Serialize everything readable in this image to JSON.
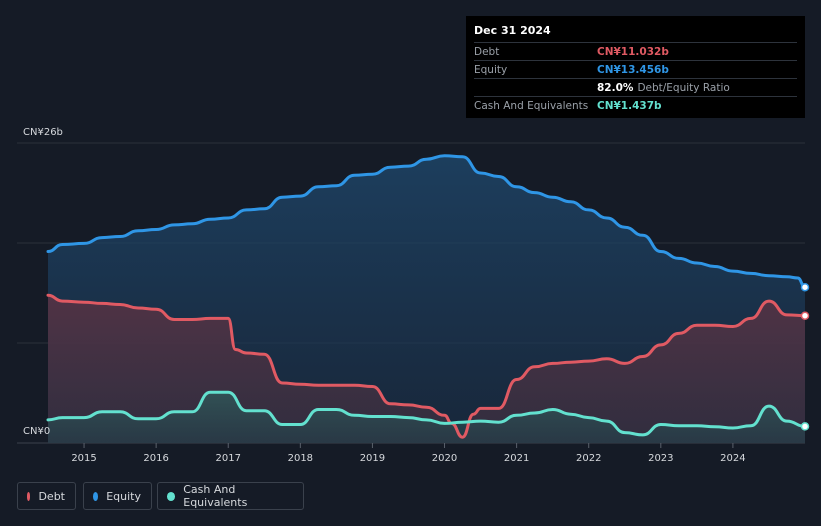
{
  "tooltip": {
    "date": "Dec 31 2024",
    "rows": [
      {
        "label": "Debt",
        "value": "CN¥11.032b",
        "extra": ""
      },
      {
        "label": "Equity",
        "value": "CN¥13.456b",
        "extra": ""
      },
      {
        "label": "",
        "value": "82.0%",
        "extra": "Debt/Equity Ratio"
      },
      {
        "label": "Cash And Equivalents",
        "value": "CN¥1.437b",
        "extra": ""
      }
    ]
  },
  "legend": [
    {
      "label": "Debt",
      "color": "#e05a63"
    },
    {
      "label": "Equity",
      "color": "#2f96e6"
    },
    {
      "label": "Cash And Equivalents",
      "color": "#63e1cf"
    }
  ],
  "chart_data": {
    "type": "area",
    "y_top_label": "CN¥26b",
    "y_bottom_label": "CN¥0",
    "ylim": [
      0,
      26
    ],
    "xlim": [
      2014.5,
      2025.0
    ],
    "x_ticks": [
      "2015",
      "2016",
      "2017",
      "2018",
      "2019",
      "2020",
      "2021",
      "2022",
      "2023",
      "2024"
    ],
    "series": [
      {
        "name": "Equity",
        "color": "#2f96e6",
        "x": [
          2014.5,
          2014.7,
          2015.0,
          2015.25,
          2015.5,
          2015.75,
          2016.0,
          2016.25,
          2016.5,
          2016.75,
          2017.0,
          2017.25,
          2017.5,
          2017.75,
          2018.0,
          2018.25,
          2018.5,
          2018.75,
          2019.0,
          2019.25,
          2019.5,
          2019.75,
          2020.0,
          2020.25,
          2020.5,
          2020.75,
          2021.0,
          2021.25,
          2021.5,
          2021.75,
          2022.0,
          2022.25,
          2022.5,
          2022.75,
          2023.0,
          2023.25,
          2023.5,
          2023.75,
          2024.0,
          2024.25,
          2024.5,
          2024.75,
          2024.9,
          2025.0
        ],
        "values": [
          16.6,
          17.2,
          17.3,
          17.8,
          17.9,
          18.4,
          18.5,
          18.9,
          19.0,
          19.4,
          19.5,
          20.2,
          20.3,
          21.3,
          21.4,
          22.2,
          22.3,
          23.2,
          23.3,
          23.9,
          24.0,
          24.6,
          24.9,
          24.8,
          23.4,
          23.1,
          22.2,
          21.7,
          21.3,
          20.9,
          20.2,
          19.5,
          18.7,
          18.0,
          16.6,
          16.0,
          15.6,
          15.3,
          14.9,
          14.7,
          14.5,
          14.4,
          14.3,
          13.5
        ]
      },
      {
        "name": "Debt",
        "color": "#e05a63",
        "x": [
          2014.5,
          2014.7,
          2015.0,
          2015.25,
          2015.5,
          2015.75,
          2016.0,
          2016.25,
          2016.5,
          2016.75,
          2017.0,
          2017.1,
          2017.25,
          2017.5,
          2017.75,
          2018.0,
          2018.25,
          2018.5,
          2018.75,
          2019.0,
          2019.25,
          2019.5,
          2019.75,
          2020.0,
          2020.1,
          2020.25,
          2020.4,
          2020.5,
          2020.75,
          2021.0,
          2021.25,
          2021.5,
          2021.75,
          2022.0,
          2022.25,
          2022.5,
          2022.75,
          2023.0,
          2023.25,
          2023.5,
          2023.75,
          2024.0,
          2024.25,
          2024.5,
          2024.75,
          2025.0
        ],
        "values": [
          12.8,
          12.3,
          12.2,
          12.1,
          12.0,
          11.7,
          11.6,
          10.7,
          10.7,
          10.8,
          10.8,
          8.1,
          7.8,
          7.7,
          5.2,
          5.1,
          5.0,
          5.0,
          5.0,
          4.9,
          3.4,
          3.3,
          3.1,
          2.4,
          1.7,
          0.5,
          2.5,
          3.0,
          3.0,
          5.5,
          6.6,
          6.9,
          7.0,
          7.1,
          7.3,
          6.9,
          7.5,
          8.5,
          9.5,
          10.2,
          10.2,
          10.1,
          10.8,
          12.3,
          11.1,
          11.03
        ]
      },
      {
        "name": "Cash And Equivalents",
        "color": "#63e1cf",
        "x": [
          2014.5,
          2014.7,
          2015.0,
          2015.25,
          2015.5,
          2015.75,
          2016.0,
          2016.25,
          2016.5,
          2016.75,
          2017.0,
          2017.25,
          2017.5,
          2017.75,
          2018.0,
          2018.25,
          2018.5,
          2018.75,
          2019.0,
          2019.25,
          2019.5,
          2019.75,
          2020.0,
          2020.25,
          2020.5,
          2020.75,
          2021.0,
          2021.25,
          2021.5,
          2021.75,
          2022.0,
          2022.25,
          2022.5,
          2022.75,
          2023.0,
          2023.25,
          2023.5,
          2023.75,
          2024.0,
          2024.25,
          2024.5,
          2024.75,
          2025.0
        ],
        "values": [
          2.0,
          2.2,
          2.2,
          2.7,
          2.7,
          2.1,
          2.1,
          2.7,
          2.7,
          4.4,
          4.4,
          2.8,
          2.8,
          1.6,
          1.6,
          2.9,
          2.9,
          2.4,
          2.3,
          2.3,
          2.2,
          2.0,
          1.7,
          1.8,
          1.9,
          1.8,
          2.4,
          2.6,
          2.9,
          2.5,
          2.2,
          1.9,
          0.9,
          0.7,
          1.6,
          1.5,
          1.5,
          1.4,
          1.3,
          1.5,
          3.2,
          1.9,
          1.44
        ]
      }
    ]
  }
}
